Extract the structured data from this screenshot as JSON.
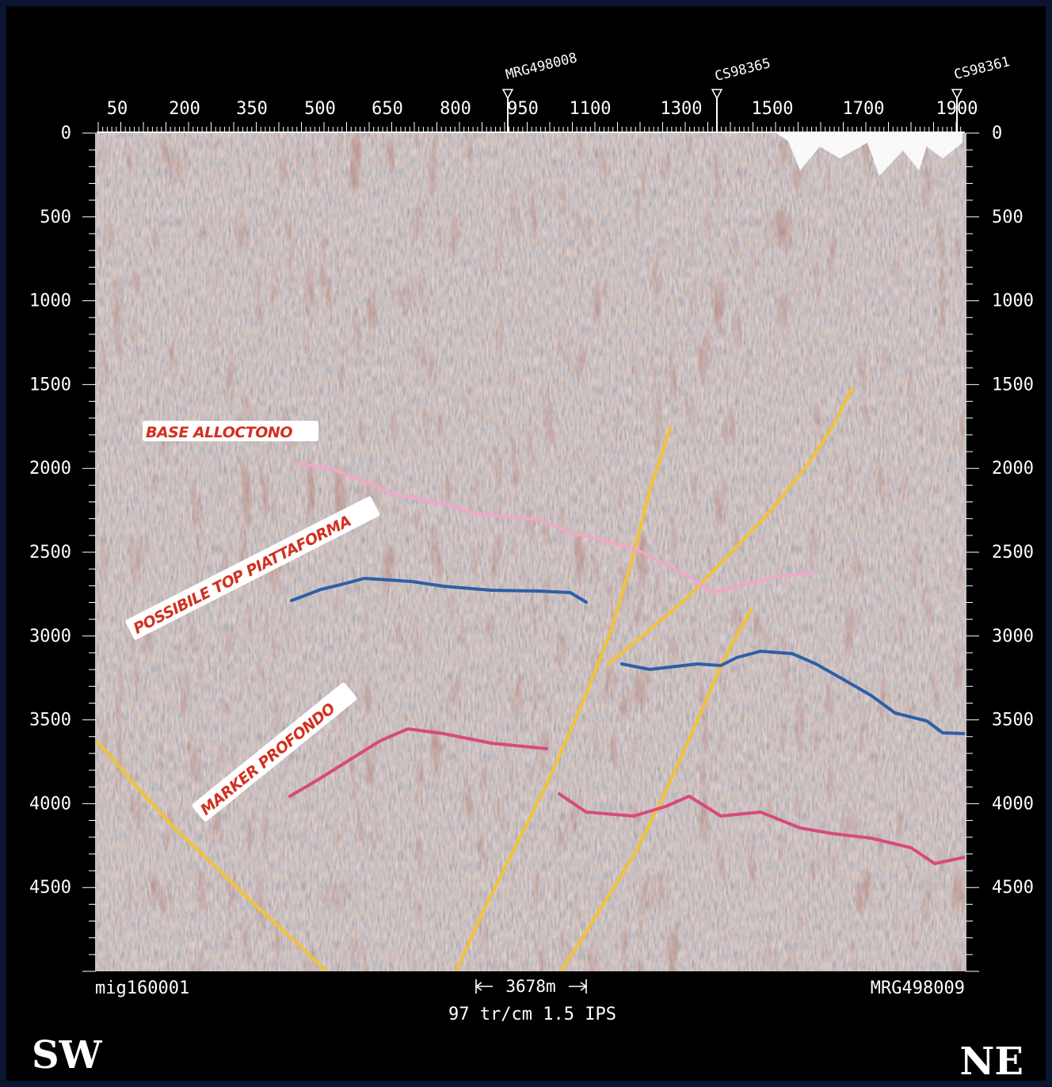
{
  "section": {
    "top_axis": {
      "ticks": [
        "50",
        "200",
        "350",
        "500",
        "650",
        "800",
        "950",
        "1100",
        "1300",
        "1500",
        "1700",
        "1900"
      ]
    },
    "depth_axis": {
      "ticks": [
        "0",
        "500",
        "1000",
        "1500",
        "2000",
        "2500",
        "3000",
        "3500",
        "4000",
        "4500"
      ]
    },
    "well_markers": [
      {
        "label": "MRG498008"
      },
      {
        "label": "CS98365"
      },
      {
        "label": "CS98361"
      }
    ],
    "horizon_labels": {
      "base_alloctono": "BASE ALLOCTONO",
      "top_piattaforma": "POSSIBILE TOP PIATTAFORMA",
      "marker_profondo": "MARKER PROFONDO"
    },
    "footer": {
      "left_line": "mig160001",
      "right_line": "MRG498009",
      "scale_bar": "3678m",
      "acquisition": "97 tr/cm 1.5 IPS"
    },
    "orientation": {
      "left": "SW",
      "right": "NE"
    },
    "colors": {
      "background": "#000000",
      "border": "#0a1530",
      "axis_text": "#ffffff",
      "label_fill": "#ffffff",
      "label_text": "#d2301e",
      "base_alloctono_line": "#f0a8c8",
      "top_piattaforma_line": "#2e5fa8",
      "marker_profondo_line": "#d84a7c",
      "fault_line": "#f2c238",
      "seismic_base": "#c9c5b2"
    }
  }
}
